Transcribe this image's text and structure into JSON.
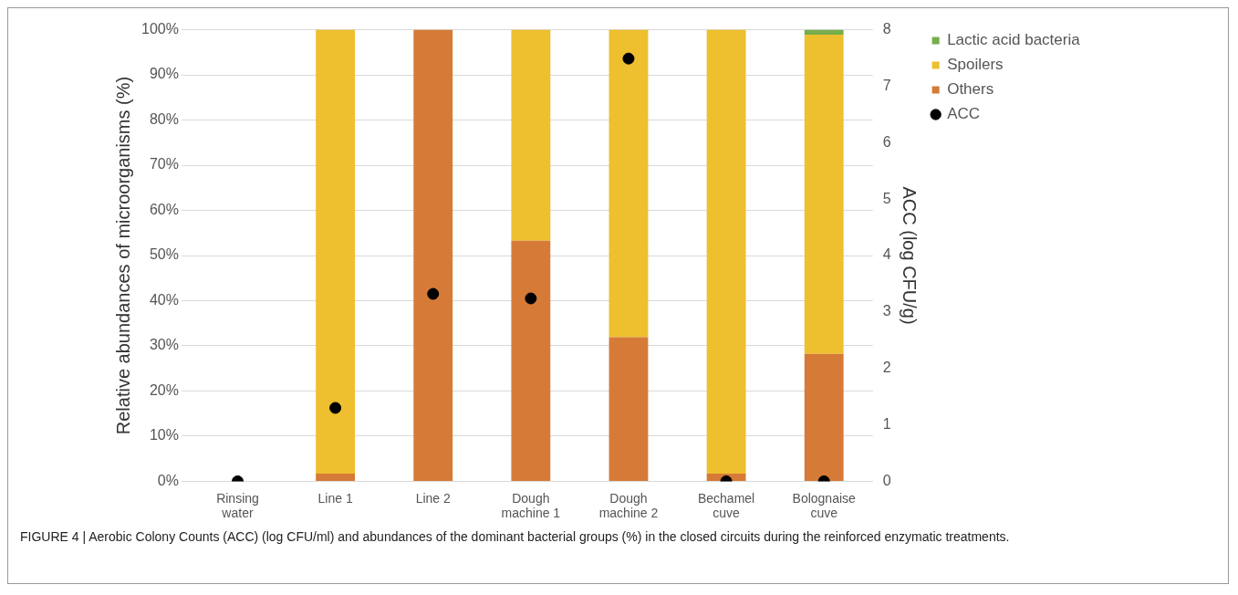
{
  "chart_data": {
    "type": "bar",
    "stacked": true,
    "categories": [
      "Rinsing water",
      "Line 1",
      "Line 2",
      "Dough machine 1",
      "Dough machine 2",
      "Bechamel cuve",
      "Bolognaise cuve"
    ],
    "series": [
      {
        "name": "Others",
        "color": "#d57b37",
        "values": [
          null,
          1.7,
          100,
          53.3,
          31.9,
          1.7,
          28.2
        ]
      },
      {
        "name": "Spoilers",
        "color": "#eebf2e",
        "values": [
          null,
          98.3,
          0,
          46.7,
          68.1,
          98.3,
          70.7
        ]
      },
      {
        "name": "Lactic acid bacteria",
        "color": "#78ad4c",
        "values": [
          null,
          0,
          0,
          0,
          0,
          null,
          1.1
        ]
      },
      {
        "name": "ACC",
        "type": "scatter",
        "axis": "y2",
        "marker": "circle",
        "color": "#000000",
        "x": [
          "Rinsing water",
          "Line 1",
          "Line 2",
          "Dough machine 1",
          "Dough machine 2",
          "Bechamel cuve",
          "Bolognaise cuve"
        ],
        "values": [
          0,
          1.3,
          3.32,
          3.24,
          7.49,
          0,
          0
        ]
      }
    ],
    "ylabel": "Relative abundances of microorganisms (%)",
    "y2label": "ACC (log CFU/g)",
    "ylim": [
      0,
      100
    ],
    "yticks": [
      {
        "value": 0,
        "label": "0%"
      },
      {
        "value": 10,
        "label": "10%"
      },
      {
        "value": 20,
        "label": "20%"
      },
      {
        "value": 30,
        "label": "30%"
      },
      {
        "value": 40,
        "label": "40%"
      },
      {
        "value": 50,
        "label": "50%"
      },
      {
        "value": 60,
        "label": "60%"
      },
      {
        "value": 70,
        "label": "70%"
      },
      {
        "value": 80,
        "label": "80%"
      },
      {
        "value": 90,
        "label": "90%"
      },
      {
        "value": 100,
        "label": "100%"
      }
    ],
    "y2lim": [
      0,
      8
    ],
    "y2ticks": [
      0,
      1,
      2,
      3,
      4,
      5,
      6,
      7,
      8
    ],
    "grid": "y",
    "legend": "right",
    "annotations": [
      "FIGURE 4 | Aerobic Colony Counts (ACC) (log CFU/ml) and abundances of the dominant bacterial groups (%) in the closed circuits during the reinforced enzymatic treatments."
    ]
  }
}
